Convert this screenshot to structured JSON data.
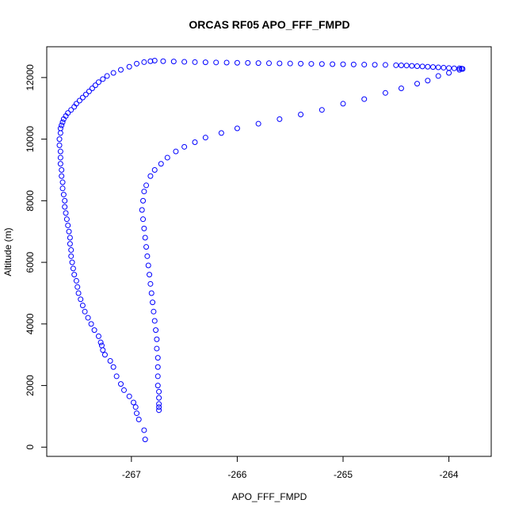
{
  "chart_data": {
    "type": "scatter",
    "title": "ORCAS RF05 APO_FFF_FMPD",
    "xlabel": "APO_FFF_FMPD",
    "ylabel": "Altitude (m)",
    "xlim": [
      -267.8,
      -263.6
    ],
    "ylim": [
      -300,
      13000
    ],
    "xticks": [
      -267,
      -266,
      -265,
      -264
    ],
    "yticks": [
      0,
      2000,
      4000,
      6000,
      8000,
      10000,
      12000
    ],
    "xtick_labels": [
      "-267",
      "-266",
      "-265",
      "-264"
    ],
    "ytick_labels": [
      "0",
      "2000",
      "4000",
      "6000",
      "8000",
      "10000",
      "12000"
    ],
    "marker_color": "#0000ff",
    "grid": false,
    "series": [
      {
        "x": [
          -266.87,
          -266.88,
          -266.93,
          -266.95,
          -266.96,
          -266.98,
          -267.02,
          -267.07,
          -267.1,
          -267.14,
          -267.17,
          -267.2,
          -267.25,
          -267.27,
          -267.28,
          -267.29,
          -267.31,
          -267.35,
          -267.38,
          -267.41,
          -267.44,
          -267.46,
          -267.48,
          -267.5,
          -267.51,
          -267.52,
          -267.54,
          -267.55,
          -267.56,
          -267.57,
          -267.57,
          -267.58,
          -267.58,
          -267.59,
          -267.6,
          -267.61,
          -267.62,
          -267.63,
          -267.63,
          -267.64,
          -267.65,
          -267.65,
          -267.66,
          -267.66,
          -267.67,
          -267.67,
          -267.67,
          -267.68,
          -267.68,
          -267.67,
          -267.67,
          -267.66,
          -267.65,
          -267.64,
          -267.62,
          -267.6,
          -267.57,
          -267.54,
          -267.52,
          -267.49,
          -267.46,
          -267.43,
          -267.4,
          -267.37,
          -267.34,
          -267.31,
          -267.27,
          -267.23,
          -267.17,
          -267.1,
          -267.02,
          -266.95,
          -266.88,
          -266.82,
          -266.78
        ],
        "y": [
          250,
          550,
          900,
          1100,
          1300,
          1450,
          1650,
          1850,
          2050,
          2300,
          2600,
          2800,
          3000,
          3150,
          3300,
          3400,
          3600,
          3800,
          4000,
          4200,
          4400,
          4600,
          4800,
          5000,
          5200,
          5400,
          5600,
          5800,
          6000,
          6200,
          6400,
          6600,
          6800,
          7000,
          7200,
          7400,
          7600,
          7800,
          8000,
          8200,
          8400,
          8600,
          8800,
          9000,
          9200,
          9400,
          9600,
          9800,
          10000,
          10200,
          10350,
          10450,
          10550,
          10650,
          10750,
          10850,
          10950,
          11050,
          11150,
          11250,
          11350,
          11450,
          11550,
          11650,
          11750,
          11850,
          11950,
          12050,
          12150,
          12250,
          12350,
          12450,
          12500,
          12530,
          12550
        ]
      },
      {
        "x": [
          -266.7,
          -266.6,
          -266.5,
          -266.4,
          -266.3,
          -266.2,
          -266.1,
          -266.0,
          -265.9,
          -265.8,
          -265.7,
          -265.6,
          -265.5,
          -265.4,
          -265.3,
          -265.2,
          -265.1,
          -265.0,
          -264.9,
          -264.8,
          -264.7,
          -264.6,
          -264.5,
          -264.45,
          -264.4,
          -264.35,
          -264.3,
          -264.25,
          -264.2,
          -264.15,
          -264.1,
          -264.05,
          -264.0,
          -263.95,
          -263.9,
          -263.88,
          -263.87
        ],
        "y": [
          12530,
          12520,
          12510,
          12500,
          12495,
          12490,
          12485,
          12480,
          12475,
          12470,
          12465,
          12460,
          12455,
          12450,
          12445,
          12440,
          12435,
          12430,
          12425,
          12420,
          12415,
          12410,
          12400,
          12395,
          12390,
          12380,
          12370,
          12360,
          12350,
          12340,
          12330,
          12320,
          12310,
          12300,
          12300,
          12290,
          12280
        ]
      },
      {
        "x": [
          -263.9,
          -264.0,
          -264.1,
          -264.2,
          -264.3,
          -264.45,
          -264.6,
          -264.8,
          -265.0,
          -265.2,
          -265.4,
          -265.6,
          -265.8,
          -266.0,
          -266.15,
          -266.3,
          -266.4,
          -266.5,
          -266.58,
          -266.66,
          -266.72,
          -266.78,
          -266.82,
          -266.86,
          -266.88,
          -266.89,
          -266.9,
          -266.89,
          -266.88,
          -266.87,
          -266.86,
          -266.85,
          -266.84,
          -266.83,
          -266.82,
          -266.81,
          -266.8,
          -266.79,
          -266.78,
          -266.77,
          -266.76,
          -266.76,
          -266.75,
          -266.75,
          -266.75,
          -266.75,
          -266.74,
          -266.74,
          -266.74,
          -266.74,
          -266.74
        ],
        "y": [
          12250,
          12150,
          12050,
          11900,
          11800,
          11650,
          11500,
          11300,
          11150,
          10950,
          10800,
          10650,
          10500,
          10350,
          10200,
          10050,
          9900,
          9750,
          9600,
          9400,
          9200,
          9000,
          8800,
          8500,
          8300,
          8000,
          7700,
          7400,
          7100,
          6800,
          6500,
          6200,
          5900,
          5600,
          5300,
          5000,
          4700,
          4400,
          4100,
          3800,
          3500,
          3200,
          2900,
          2600,
          2300,
          2000,
          1800,
          1600,
          1400,
          1300,
          1200
        ]
      }
    ]
  }
}
